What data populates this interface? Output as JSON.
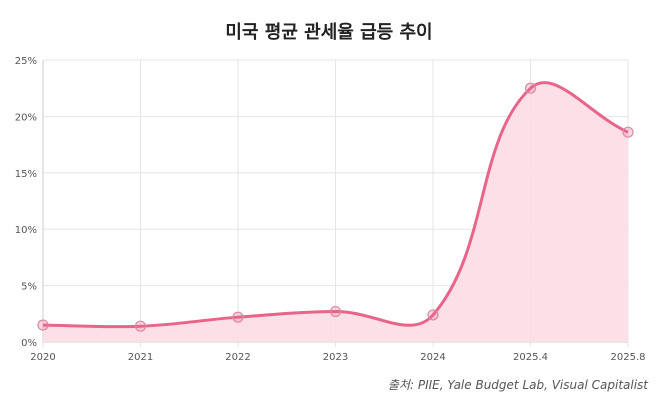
{
  "chart_data": {
    "type": "area",
    "title": "미국 평균 관세율 급등 추이",
    "source": "출처: PIIE, Yale Budget Lab, Visual Capitalist",
    "categories": [
      "2020",
      "2021",
      "2022",
      "2023",
      "2024",
      "2025.4",
      "2025.8"
    ],
    "series": [
      {
        "name": "평균 관세율",
        "values": [
          1.5,
          1.4,
          2.2,
          2.7,
          2.4,
          22.5,
          18.6
        ]
      }
    ],
    "ylim": [
      0,
      25
    ],
    "yticks": [
      "0%",
      "5%",
      "10%",
      "15%",
      "20%",
      "25%"
    ],
    "ytick_values": [
      0,
      5,
      10,
      15,
      20,
      25
    ],
    "grid": true,
    "colors": {
      "line": "#e8658a",
      "fill": "#fddde4",
      "grid": "#e6e6e6"
    }
  }
}
